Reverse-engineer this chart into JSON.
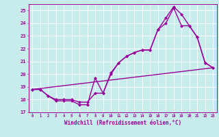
{
  "background_color": "#c8ecec",
  "grid_color": "#ffffff",
  "line_color": "#990099",
  "marker": "D",
  "marker_size": 2.0,
  "line_width": 1.0,
  "xlabel": "Windchill (Refroidissement éolien,°C)",
  "xlim": [
    -0.5,
    23.5
  ],
  "ylim": [
    17,
    25.5
  ],
  "yticks": [
    17,
    18,
    19,
    20,
    21,
    22,
    23,
    24,
    25
  ],
  "xticks": [
    0,
    1,
    2,
    3,
    4,
    5,
    6,
    7,
    8,
    9,
    10,
    11,
    12,
    13,
    14,
    15,
    16,
    17,
    18,
    19,
    20,
    21,
    22,
    23
  ],
  "series1_x": [
    0,
    1,
    2,
    3,
    4,
    5,
    6,
    7,
    8,
    9,
    10,
    11,
    12,
    13,
    14,
    15,
    16,
    17,
    18,
    19,
    20,
    21,
    22,
    23
  ],
  "series1_y": [
    18.8,
    18.8,
    18.3,
    17.9,
    17.9,
    17.9,
    17.6,
    17.6,
    19.7,
    18.5,
    20.0,
    20.9,
    21.4,
    21.7,
    21.9,
    21.9,
    23.5,
    24.0,
    25.2,
    23.8,
    23.8,
    22.9,
    20.9,
    20.5
  ],
  "series2_x": [
    0,
    1,
    2,
    3,
    4,
    5,
    6,
    7,
    8,
    9,
    10,
    11,
    12,
    13,
    14,
    15,
    16,
    17,
    18,
    19,
    20,
    21,
    22,
    23
  ],
  "series2_y": [
    18.8,
    18.8,
    18.3,
    18.0,
    18.0,
    18.0,
    17.8,
    17.8,
    18.5,
    18.5,
    20.1,
    20.9,
    21.4,
    21.7,
    21.9,
    21.9,
    23.5,
    24.4,
    25.3,
    24.7,
    23.8,
    22.9,
    20.9,
    20.5
  ],
  "series3_x": [
    0,
    23
  ],
  "series3_y": [
    18.8,
    20.5
  ]
}
